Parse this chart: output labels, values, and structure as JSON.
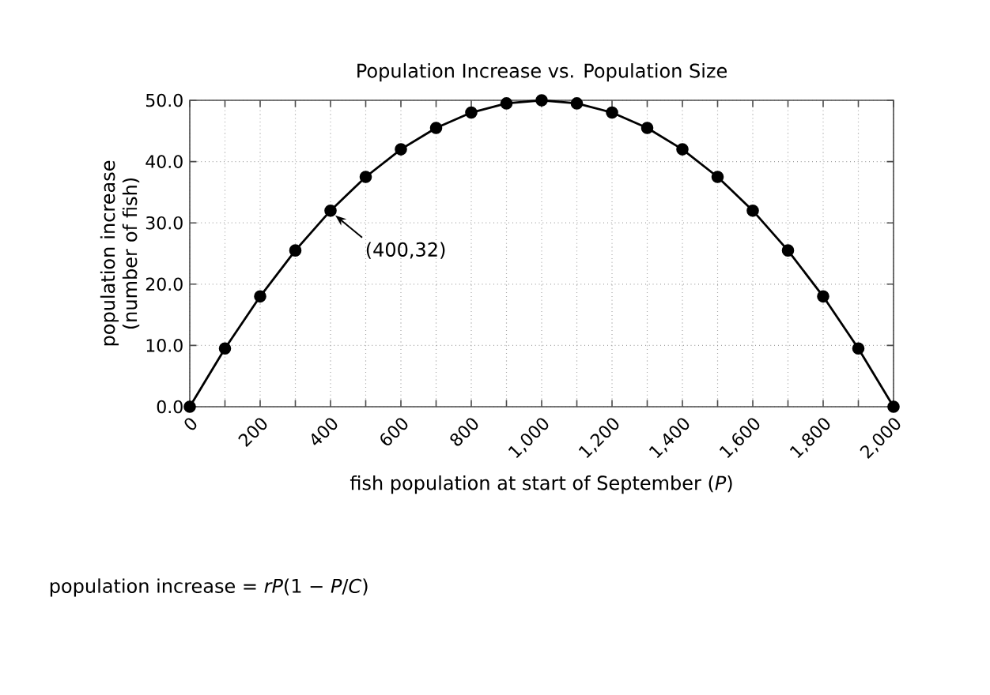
{
  "chart_data": {
    "type": "line",
    "title": "Population Increase vs. Population Size",
    "xlabel": "fish population at start of September (*P*)",
    "ylabel": "population increase\n(number of fish)",
    "x": [
      0,
      100,
      200,
      300,
      400,
      500,
      600,
      700,
      800,
      900,
      1000,
      1100,
      1200,
      1300,
      1400,
      1500,
      1600,
      1700,
      1800,
      1900,
      2000
    ],
    "values": [
      0,
      9.5,
      18,
      25.5,
      32,
      37.5,
      42,
      45.5,
      48,
      49.5,
      50,
      49.5,
      48,
      45.5,
      42,
      37.5,
      32,
      25.5,
      18,
      9.5,
      0
    ],
    "color": "#000000",
    "marker": "circle",
    "line_style": "solid",
    "grid": true,
    "xlim": [
      0,
      2000
    ],
    "ylim": [
      0,
      50
    ],
    "xticks": [
      {
        "value": 0,
        "label": "0"
      },
      {
        "value": 100,
        "label": null
      },
      {
        "value": 200,
        "label": "200"
      },
      {
        "value": 300,
        "label": null
      },
      {
        "value": 400,
        "label": "400"
      },
      {
        "value": 500,
        "label": null
      },
      {
        "value": 600,
        "label": "600"
      },
      {
        "value": 700,
        "label": null
      },
      {
        "value": 800,
        "label": "800"
      },
      {
        "value": 900,
        "label": null
      },
      {
        "value": 1000,
        "label": "1,000"
      },
      {
        "value": 1100,
        "label": null
      },
      {
        "value": 1200,
        "label": "1,200"
      },
      {
        "value": 1300,
        "label": null
      },
      {
        "value": 1400,
        "label": "1,400"
      },
      {
        "value": 1500,
        "label": null
      },
      {
        "value": 1600,
        "label": "1,600"
      },
      {
        "value": 1700,
        "label": null
      },
      {
        "value": 1800,
        "label": "1,800"
      },
      {
        "value": 1900,
        "label": null
      },
      {
        "value": 2000,
        "label": "2,000"
      }
    ],
    "yticks": [
      {
        "value": 0,
        "label": "0.0"
      },
      {
        "value": 10,
        "label": "10.0"
      },
      {
        "value": 20,
        "label": "20.0"
      },
      {
        "value": 30,
        "label": "30.0"
      },
      {
        "value": 40,
        "label": "40.0"
      },
      {
        "value": 50,
        "label": "50.0"
      }
    ],
    "annotations": [
      {
        "text": "(400,32)",
        "x": 400,
        "y": 32
      },
      "population increase = *rP*(1 − *P*/*C*)"
    ]
  }
}
